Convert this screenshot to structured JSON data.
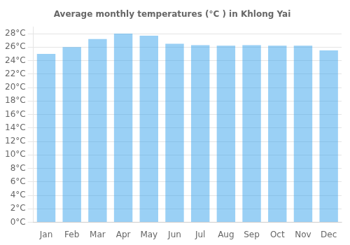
{
  "chart_data": {
    "type": "bar",
    "title": "Average monthly temperatures (°C ) in Khlong Yai",
    "categories": [
      "Jan",
      "Feb",
      "Mar",
      "Apr",
      "May",
      "Jun",
      "Jul",
      "Aug",
      "Sep",
      "Oct",
      "Nov",
      "Dec"
    ],
    "values": [
      25.0,
      26.0,
      27.2,
      28.0,
      27.7,
      26.5,
      26.3,
      26.2,
      26.3,
      26.2,
      26.2,
      25.5
    ],
    "ylim": [
      0,
      29
    ],
    "yticks": [
      {
        "value": 0,
        "label": "0°C"
      },
      {
        "value": 2,
        "label": "2°C"
      },
      {
        "value": 4,
        "label": "4°C"
      },
      {
        "value": 6,
        "label": "6°C"
      },
      {
        "value": 8,
        "label": "8°C"
      },
      {
        "value": 10,
        "label": "10°C"
      },
      {
        "value": 12,
        "label": "12°C"
      },
      {
        "value": 14,
        "label": "14°C"
      },
      {
        "value": 16,
        "label": "16°C"
      },
      {
        "value": 18,
        "label": "18°C"
      },
      {
        "value": 20,
        "label": "20°C"
      },
      {
        "value": 22,
        "label": "22°C"
      },
      {
        "value": 24,
        "label": "24°C"
      },
      {
        "value": 26,
        "label": "26°C"
      },
      {
        "value": 28,
        "label": "28°C"
      }
    ],
    "grid": true
  }
}
